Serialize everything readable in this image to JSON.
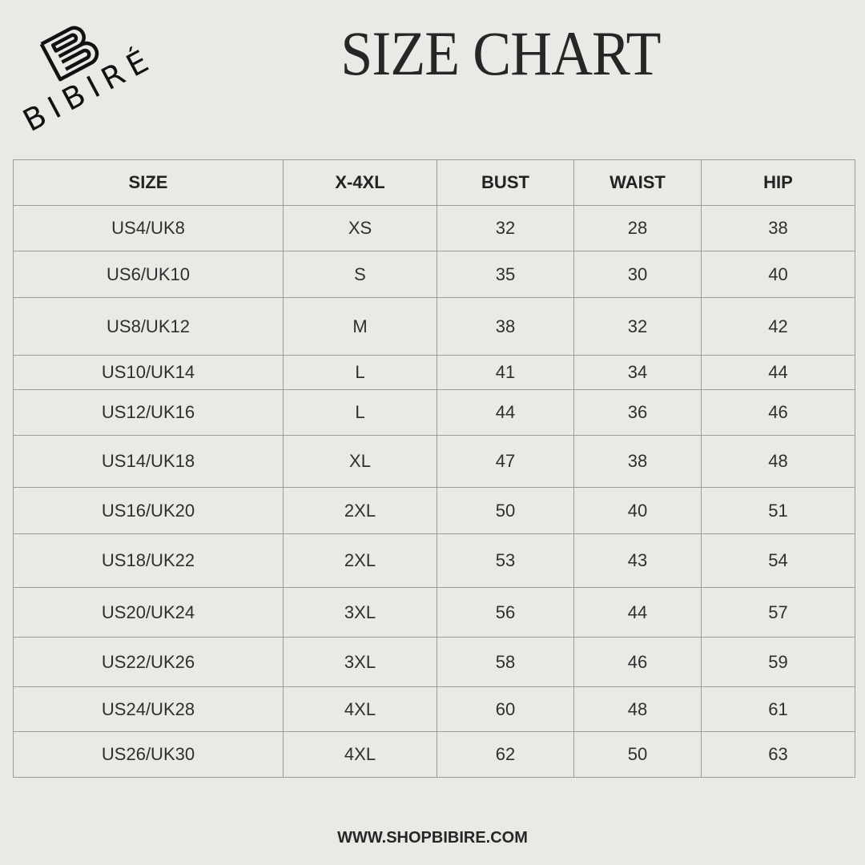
{
  "brand": {
    "logo_text": "BIBIRÉ"
  },
  "title": "SIZE CHART",
  "table": {
    "headers": [
      "SIZE",
      "X-4XL",
      "BUST",
      "WAIST",
      "HIP"
    ],
    "rows": [
      [
        "US4/UK8",
        "XS",
        "32",
        "28",
        "38"
      ],
      [
        "US6/UK10",
        "S",
        "35",
        "30",
        "40"
      ],
      [
        "US8/UK12",
        "M",
        "38",
        "32",
        "42"
      ],
      [
        "US10/UK14",
        "L",
        "41",
        "34",
        "44"
      ],
      [
        "US12/UK16",
        "L",
        "44",
        "36",
        "46"
      ],
      [
        "US14/UK18",
        "XL",
        "47",
        "38",
        "48"
      ],
      [
        "US16/UK20",
        "2XL",
        "50",
        "40",
        "51"
      ],
      [
        "US18/UK22",
        "2XL",
        "53",
        "43",
        "54"
      ],
      [
        "US20/UK24",
        "3XL",
        "56",
        "44",
        "57"
      ],
      [
        "US22/UK26",
        "3XL",
        "58",
        "46",
        "59"
      ],
      [
        "US24/UK28",
        "4XL",
        "60",
        "48",
        "61"
      ],
      [
        "US26/UK30",
        "4XL",
        "62",
        "50",
        "63"
      ]
    ]
  },
  "footer": {
    "website": "WWW.SHOPBIBIRE.COM"
  },
  "colors": {
    "background": "#ebe9e5",
    "border": "#9c9c9c",
    "text": "#2a2a2a"
  }
}
